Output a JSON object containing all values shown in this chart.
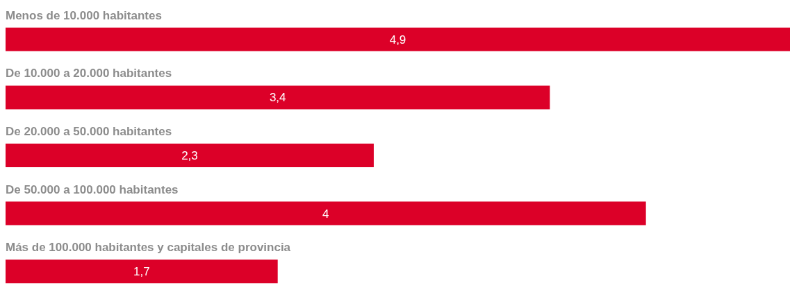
{
  "chart_data": {
    "type": "bar",
    "orientation": "horizontal",
    "categories": [
      "Menos de 10.000 habitantes",
      "De 10.000 a 20.000 habitantes",
      "De 20.000 a 50.000 habitantes",
      "De 50.000 a 100.000 habitantes",
      "Más de 100.000 habitantes y capitales de provincia"
    ],
    "values": [
      4.9,
      3.4,
      2.3,
      4,
      1.7
    ],
    "value_labels": [
      "4,9",
      "3,4",
      "2,3",
      "4",
      "1,7"
    ],
    "color": "#dc0028"
  }
}
